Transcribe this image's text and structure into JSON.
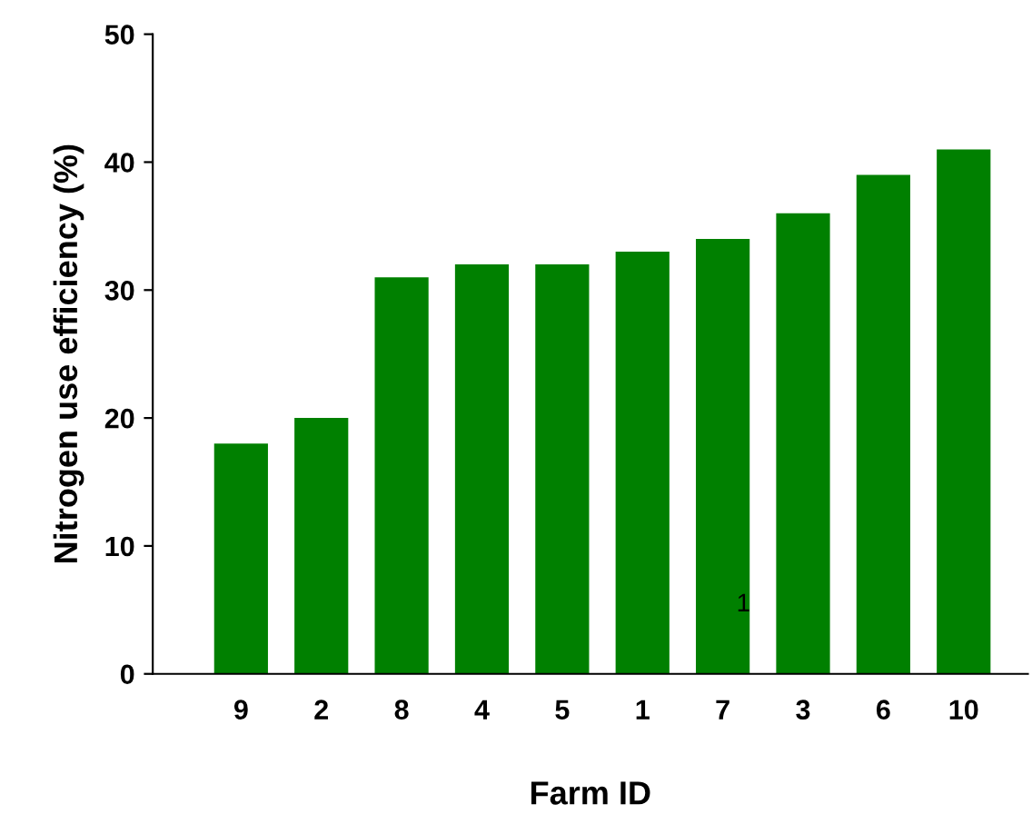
{
  "chart_data": {
    "type": "bar",
    "xlabel": "Farm ID",
    "ylabel": "Nitrogen use efficiency (%)",
    "categories": [
      "9",
      "2",
      "8",
      "4",
      "5",
      "1",
      "7",
      "3",
      "6",
      "10"
    ],
    "values": [
      18,
      20,
      31,
      32,
      32,
      33,
      34,
      36,
      39,
      41
    ],
    "color": "#008000",
    "ylim": [
      0,
      50
    ],
    "yticks": [
      0,
      10,
      20,
      30,
      40,
      50
    ],
    "annotations": [
      "1"
    ],
    "grid": false,
    "legend": false
  }
}
